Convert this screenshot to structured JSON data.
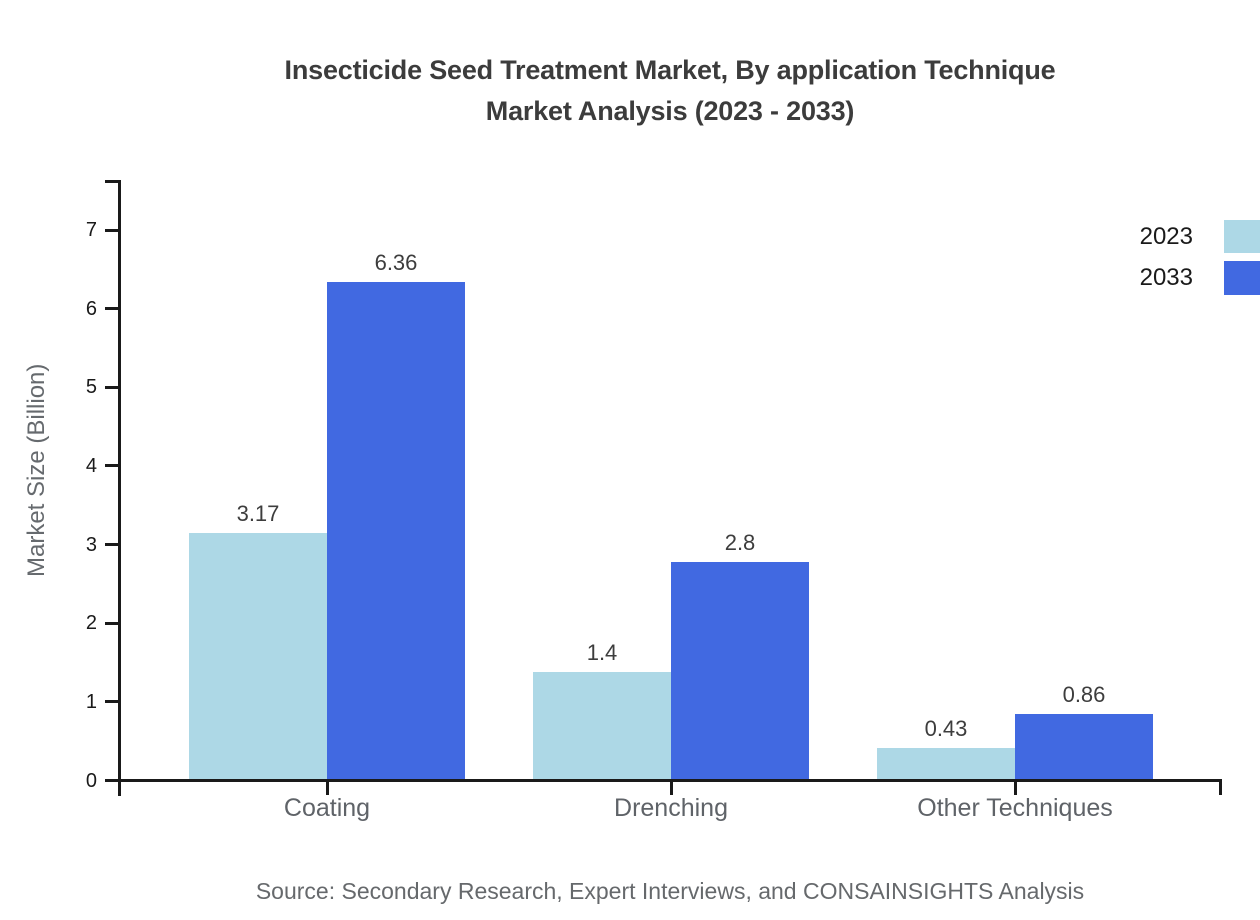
{
  "chart_data": {
    "type": "bar",
    "title_line1": "Insecticide Seed Treatment Market, By application Technique",
    "title_line2": "Market Analysis (2023 - 2033)",
    "ylabel": "Market Size (Billion)",
    "xlabel": "",
    "categories": [
      "Coating",
      "Drenching",
      "Other Techniques"
    ],
    "series": [
      {
        "name": "2023",
        "color": "#ADD8E6",
        "values": [
          3.17,
          1.4,
          0.43
        ]
      },
      {
        "name": "2033",
        "color": "#4169E1",
        "values": [
          6.36,
          2.8,
          0.86
        ]
      }
    ],
    "value_labels": {
      "2023": [
        "3.17",
        "1.4",
        "0.43"
      ],
      "2033": [
        "6.36",
        "2.8",
        "0.86"
      ]
    },
    "yticks": [
      0,
      1,
      2,
      3,
      4,
      5,
      6,
      7
    ],
    "ylim": [
      0,
      7
    ],
    "grid": false,
    "legend_position": "top-right",
    "source": "Source: Secondary Research, Expert Interviews, and CONSAINSIGHTS Analysis"
  },
  "colors": {
    "series_2023": "#ADD8E6",
    "series_2033": "#4169E1",
    "axis": "#1a1a1a",
    "title_text": "#3c3c3c",
    "category_text": "#5f6368",
    "value_text": "#3d3d3d",
    "tick_text": "#1a1a1a",
    "muted_text": "#66696c"
  }
}
